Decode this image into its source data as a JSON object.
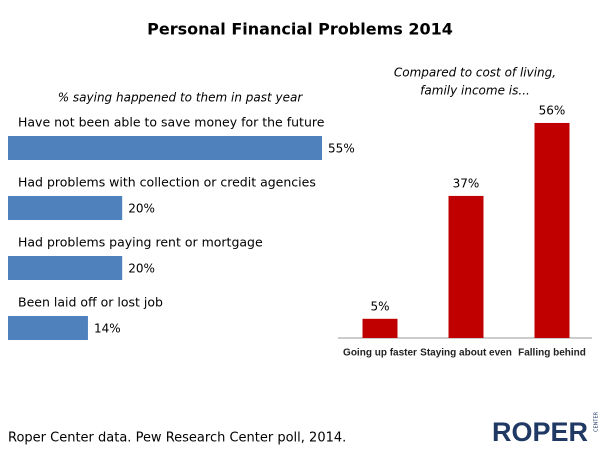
{
  "title": "Personal Financial Problems 2014",
  "chart_data": [
    {
      "type": "bar",
      "orientation": "horizontal",
      "subtitle": "% saying happened to them in past year",
      "categories": [
        "Have not been able to save money for the future",
        "Had problems with collection or credit agencies",
        "Had problems paying rent or mortgage",
        "Been laid off or lost job"
      ],
      "values": [
        55,
        20,
        20,
        14
      ],
      "value_labels": [
        "55%",
        "20%",
        "20%",
        "14%"
      ],
      "color": "#4f81bd"
    },
    {
      "type": "bar",
      "orientation": "vertical",
      "subtitle": [
        "Compared to cost of living,",
        "family income is..."
      ],
      "categories": [
        "Going up faster",
        "Staying about even",
        "Falling behind"
      ],
      "values": [
        5,
        37,
        56
      ],
      "value_labels": [
        "5%",
        "37%",
        "56%"
      ],
      "color": "#c00000"
    }
  ],
  "source": "Roper Center data. Pew Research Center poll, 2014.",
  "logo": "ROPER",
  "logo_sub": "CENTER"
}
